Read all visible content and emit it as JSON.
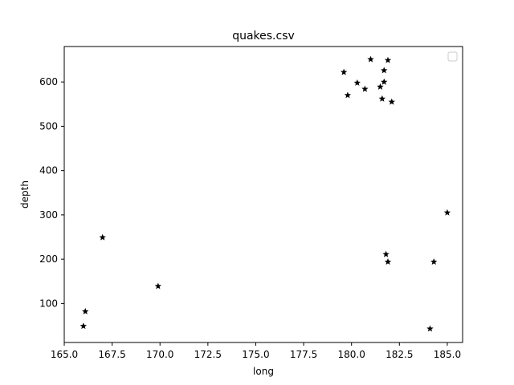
{
  "chart_data": {
    "type": "scatter",
    "title": "quakes.csv",
    "xlabel": "long",
    "ylabel": "depth",
    "xlim": [
      165.0,
      185.8
    ],
    "ylim": [
      12,
      680
    ],
    "x_ticks": [
      "165.0",
      "167.5",
      "170.0",
      "172.5",
      "175.0",
      "177.5",
      "180.0",
      "182.5",
      "185.0"
    ],
    "x_tick_values": [
      165.0,
      167.5,
      170.0,
      172.5,
      175.0,
      177.5,
      180.0,
      182.5,
      185.0
    ],
    "y_ticks": [
      "100",
      "200",
      "300",
      "400",
      "500",
      "600"
    ],
    "y_tick_values": [
      100,
      200,
      300,
      400,
      500,
      600
    ],
    "marker": "star",
    "marker_color": "#000000",
    "grid": false,
    "legend": "top-right (empty)",
    "points": [
      {
        "x": 181.0,
        "y": 651
      },
      {
        "x": 181.9,
        "y": 649
      },
      {
        "x": 179.6,
        "y": 622
      },
      {
        "x": 181.7,
        "y": 626
      },
      {
        "x": 180.3,
        "y": 598
      },
      {
        "x": 181.7,
        "y": 600
      },
      {
        "x": 180.7,
        "y": 584
      },
      {
        "x": 181.5,
        "y": 589
      },
      {
        "x": 179.8,
        "y": 570
      },
      {
        "x": 181.6,
        "y": 562
      },
      {
        "x": 182.1,
        "y": 555
      },
      {
        "x": 185.0,
        "y": 305
      },
      {
        "x": 167.0,
        "y": 249
      },
      {
        "x": 181.8,
        "y": 211
      },
      {
        "x": 181.9,
        "y": 194
      },
      {
        "x": 184.3,
        "y": 194
      },
      {
        "x": 169.9,
        "y": 139
      },
      {
        "x": 166.1,
        "y": 82
      },
      {
        "x": 166.0,
        "y": 49
      },
      {
        "x": 184.1,
        "y": 43
      }
    ]
  }
}
